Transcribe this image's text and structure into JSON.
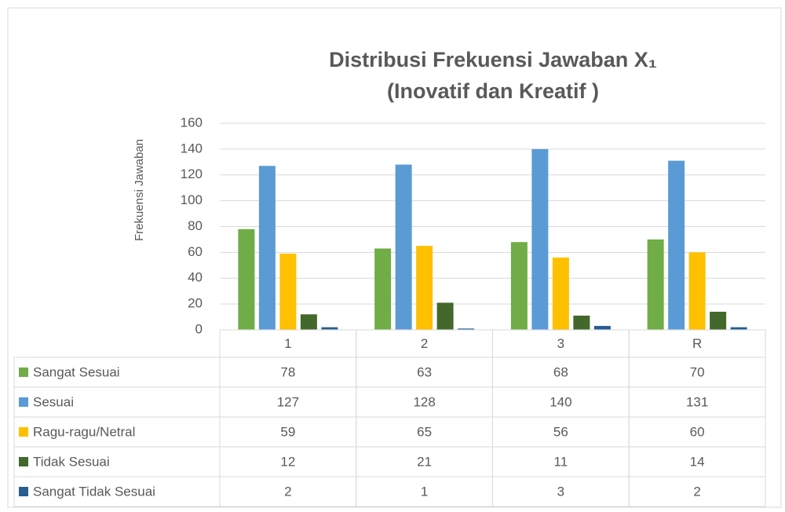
{
  "chart_data": {
    "type": "bar",
    "title": [
      "Distribusi Frekuensi Jawaban X₁",
      "(Inovatif dan Kreatif )"
    ],
    "y_label": "Frekuensi Jawaban",
    "categories": [
      "1",
      "2",
      "3",
      "R"
    ],
    "series": [
      {
        "name": "Sangat Sesuai",
        "color": "#70ad47",
        "values": [
          78,
          63,
          68,
          70
        ]
      },
      {
        "name": "Sesuai",
        "color": "#5b9bd5",
        "values": [
          127,
          128,
          140,
          131
        ]
      },
      {
        "name": "Ragu-ragu/Netral",
        "color": "#ffc000",
        "values": [
          59,
          65,
          56,
          60
        ]
      },
      {
        "name": "Tidak Sesuai",
        "color": "#43682b",
        "values": [
          12,
          21,
          11,
          14
        ]
      },
      {
        "name": "Sangat Tidak Sesuai",
        "color": "#255e91",
        "values": [
          2,
          1,
          3,
          2
        ]
      }
    ],
    "ylim": [
      0,
      160
    ],
    "yticks": [
      0,
      20,
      40,
      60,
      80,
      100,
      120,
      140,
      160
    ],
    "grid": true,
    "data_table": true
  }
}
